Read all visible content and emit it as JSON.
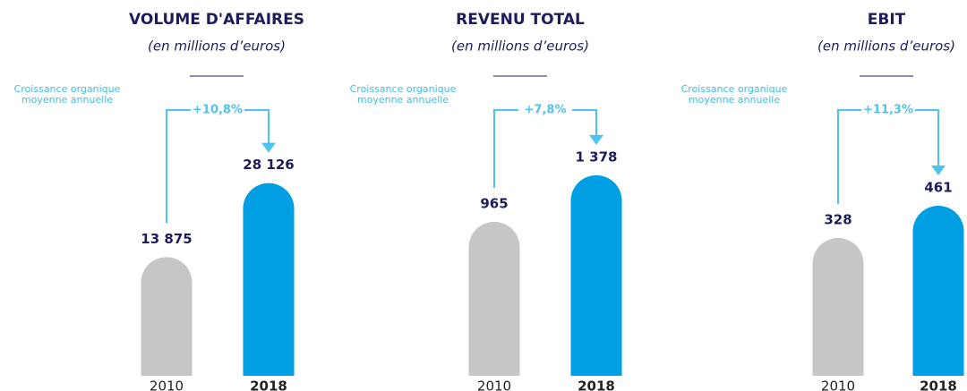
{
  "chart_data": [
    {
      "type": "bar",
      "title": "VOLUME D'AFFAIRES",
      "subtitle": "(en millions d’euros)",
      "categories": [
        "2010",
        "2018"
      ],
      "values": [
        13875,
        28126
      ],
      "value_labels": [
        "13 875",
        "28 126"
      ],
      "colors": [
        "#c6c6c8",
        "#009fe3"
      ],
      "ylim": [
        -9000,
        41000
      ],
      "note": "Croissance organique moyenne annuelle",
      "annotation": "+10,8%"
    },
    {
      "type": "bar",
      "title": "REVENU TOTAL",
      "subtitle": "(en millions d’euros)",
      "categories": [
        "2010",
        "2018"
      ],
      "values": [
        965,
        1378
      ],
      "value_labels": [
        "965",
        "1 378"
      ],
      "colors": [
        "#c6c6c8",
        "#009fe3"
      ],
      "ylim": [
        -400,
        1900
      ],
      "note": "Croissance organique moyenne annuelle",
      "annotation": "+7,8%"
    },
    {
      "type": "bar",
      "title": "EBIT",
      "subtitle": "(en millions d’euros)",
      "categories": [
        "2010",
        "2018"
      ],
      "values": [
        328,
        461
      ],
      "value_labels": [
        "328",
        "461"
      ],
      "colors": [
        "#c6c6c8",
        "#009fe3"
      ],
      "ylim": [
        -240,
        830
      ],
      "note": "Croissance organique moyenne annuelle",
      "annotation": "+11,3%"
    }
  ]
}
